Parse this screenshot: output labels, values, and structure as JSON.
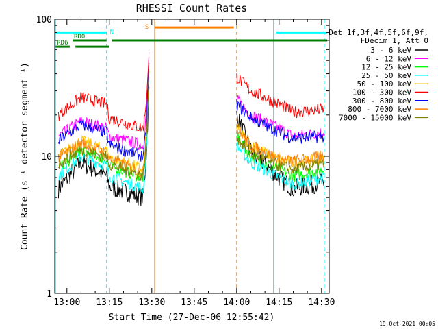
{
  "chart_data": {
    "type": "line",
    "title": "RHESSI Count Rates",
    "xlabel": "Start Time (27-Dec-06 12:55:42)",
    "ylabel": "Count Rate (s⁻¹ detector segment⁻¹)",
    "y_scale": "log",
    "ylim": [
      1,
      100
    ],
    "xlim": [
      "12:55:42",
      "14:32:42"
    ],
    "x_ticks": [
      "13:00",
      "13:15",
      "13:30",
      "13:45",
      "14:00",
      "14:15",
      "14:30"
    ],
    "y_ticks": [
      "1",
      "10",
      "100"
    ],
    "legend_position": "right",
    "legend_header": [
      "Det 1f,3f,4f,5f,6f,9f,",
      "FDecim 1, Att 0"
    ],
    "series": [
      {
        "name": "3 - 6 keV",
        "color": "#000000",
        "points": [
          [
            "12:57",
            5.8
          ],
          [
            "13:05",
            9.0
          ],
          [
            "13:14",
            7.2
          ],
          [
            "13:15",
            6.0
          ],
          [
            "13:27",
            5.0
          ],
          [
            "13:28",
            10
          ],
          [
            "13:29",
            30
          ],
          [
            "14:00",
            20
          ],
          [
            "14:05",
            11
          ],
          [
            "14:15",
            7.0
          ],
          [
            "14:20",
            5.8
          ],
          [
            "14:31",
            6.5
          ]
        ]
      },
      {
        "name": "6 - 12 keV",
        "color": "#ff00ff",
        "points": [
          [
            "12:57",
            14
          ],
          [
            "13:05",
            18
          ],
          [
            "13:14",
            16
          ],
          [
            "13:15",
            14
          ],
          [
            "13:27",
            12
          ],
          [
            "13:28",
            20
          ],
          [
            "13:29",
            55
          ],
          [
            "14:00",
            26
          ],
          [
            "14:05",
            20
          ],
          [
            "14:15",
            16
          ],
          [
            "14:20",
            14
          ],
          [
            "14:31",
            15
          ]
        ]
      },
      {
        "name": "12 - 25 keV",
        "color": "#00ff00",
        "points": [
          [
            "12:57",
            8.2
          ],
          [
            "13:05",
            11
          ],
          [
            "13:14",
            9.5
          ],
          [
            "13:15",
            8.5
          ],
          [
            "13:27",
            7.0
          ],
          [
            "13:28",
            12
          ],
          [
            "13:29",
            40
          ],
          [
            "14:00",
            14
          ],
          [
            "14:05",
            10
          ],
          [
            "14:15",
            8.0
          ],
          [
            "14:20",
            7.2
          ],
          [
            "14:31",
            8.0
          ]
        ]
      },
      {
        "name": "25 - 50 keV",
        "color": "#00ffff",
        "points": [
          [
            "12:57",
            7.2
          ],
          [
            "13:05",
            10
          ],
          [
            "13:14",
            8.5
          ],
          [
            "13:15",
            7.2
          ],
          [
            "13:27",
            5.8
          ],
          [
            "13:28",
            10
          ],
          [
            "13:29",
            35
          ],
          [
            "14:00",
            12
          ],
          [
            "14:05",
            9.0
          ],
          [
            "14:15",
            7.0
          ],
          [
            "14:20",
            6.2
          ],
          [
            "14:31",
            7.0
          ]
        ]
      },
      {
        "name": "50 - 100 keV",
        "color": "#ffc000",
        "points": [
          [
            "12:57",
            10
          ],
          [
            "13:05",
            13
          ],
          [
            "13:14",
            11
          ],
          [
            "13:15",
            10
          ],
          [
            "13:27",
            8.0
          ],
          [
            "13:28",
            14
          ],
          [
            "13:29",
            45
          ],
          [
            "14:00",
            16
          ],
          [
            "14:05",
            12
          ],
          [
            "14:15",
            9.5
          ],
          [
            "14:20",
            9.0
          ],
          [
            "14:31",
            9.5
          ]
        ]
      },
      {
        "name": "100 - 300 keV",
        "color": "#ff0000",
        "points": [
          [
            "12:57",
            20
          ],
          [
            "13:05",
            27
          ],
          [
            "13:14",
            24
          ],
          [
            "13:15",
            19
          ],
          [
            "13:27",
            16
          ],
          [
            "13:28",
            25
          ],
          [
            "13:29",
            50
          ],
          [
            "14:00",
            38
          ],
          [
            "14:05",
            30
          ],
          [
            "14:15",
            24
          ],
          [
            "14:20",
            21
          ],
          [
            "14:31",
            22
          ]
        ]
      },
      {
        "name": "300 - 800 keV",
        "color": "#0000ff",
        "points": [
          [
            "12:57",
            13
          ],
          [
            "13:05",
            17
          ],
          [
            "13:14",
            15
          ],
          [
            "13:15",
            12
          ],
          [
            "13:27",
            10
          ],
          [
            "13:28",
            15
          ],
          [
            "13:29",
            45
          ],
          [
            "14:00",
            24
          ],
          [
            "14:05",
            19
          ],
          [
            "14:15",
            15
          ],
          [
            "14:20",
            13.5
          ],
          [
            "14:31",
            14
          ]
        ]
      },
      {
        "name": "800 - 7000 keV",
        "color": "#ff8000",
        "points": [
          [
            "12:57",
            9.8
          ],
          [
            "13:05",
            12.5
          ],
          [
            "13:14",
            10.5
          ],
          [
            "13:15",
            9.5
          ],
          [
            "13:27",
            7.6
          ],
          [
            "13:28",
            13
          ],
          [
            "13:29",
            42
          ],
          [
            "14:00",
            16
          ],
          [
            "14:05",
            12
          ],
          [
            "14:15",
            9.5
          ],
          [
            "14:20",
            9.2
          ],
          [
            "14:31",
            10
          ]
        ]
      },
      {
        "name": "7000 - 15000 keV",
        "color": "#808000",
        "points": [
          [
            "12:57",
            8.8
          ],
          [
            "13:05",
            11.2
          ],
          [
            "13:14",
            9.8
          ],
          [
            "13:15",
            8.8
          ],
          [
            "13:27",
            7.2
          ],
          [
            "13:28",
            12
          ],
          [
            "13:29",
            38
          ],
          [
            "14:00",
            14
          ],
          [
            "14:05",
            10.5
          ],
          [
            "14:15",
            8.5
          ],
          [
            "14:20",
            8.0
          ],
          [
            "14:31",
            8.8
          ]
        ]
      }
    ],
    "state_bars": [
      {
        "label": "",
        "color": "#00ffff",
        "y": 80,
        "from": "12:56",
        "to": "13:14"
      },
      {
        "label": "",
        "color": "#00ffff",
        "y": 80,
        "from": "14:14",
        "to": "14:32"
      },
      {
        "label": "RD0",
        "color": "#008000",
        "y": 70,
        "from": "13:02",
        "to": "13:14"
      },
      {
        "label": "RD6",
        "color": "#008000",
        "y": 63,
        "from": "12:56",
        "to": "13:01"
      },
      {
        "label": "",
        "color": "#008000",
        "y": 70,
        "from": "13:16",
        "to": "14:32"
      },
      {
        "label": "",
        "color": "#008000",
        "y": 63,
        "from": "13:03",
        "to": "13:15"
      },
      {
        "label": "S",
        "color": "#ff8000",
        "y": 87,
        "from": "13:31",
        "to": "13:59"
      }
    ],
    "state_markers": [
      {
        "label": "N",
        "color": "#00ffff",
        "at": "13:14"
      }
    ],
    "vertical_lines": [
      {
        "at": "12:56",
        "color": "#00ffff",
        "style": "solid"
      },
      {
        "at": "13:14",
        "color": "#00ffff",
        "style": "dashed"
      },
      {
        "at": "13:31",
        "color": "#ff8000",
        "style": "solid"
      },
      {
        "at": "14:00",
        "color": "#ff8000",
        "style": "dashed"
      },
      {
        "at": "14:13",
        "color": "#00ffff",
        "style": "solid"
      },
      {
        "at": "14:31",
        "color": "#00ffff",
        "style": "dashed"
      }
    ],
    "gap": {
      "from": "13:30",
      "to": "14:00"
    }
  },
  "timestamp": "19-Oct-2021 00:05"
}
